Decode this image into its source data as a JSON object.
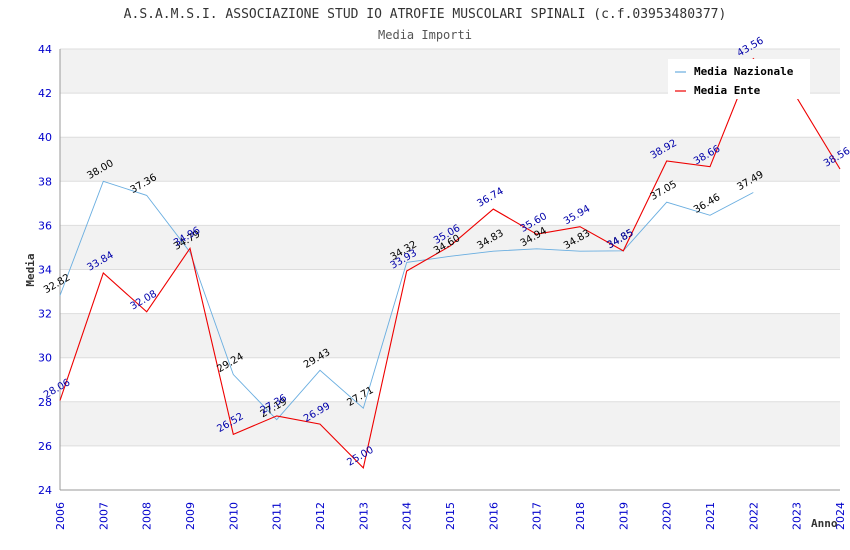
{
  "chart_data": {
    "type": "line",
    "title": "A.S.A.M.S.I. ASSOCIAZIONE STUD IO ATROFIE MUSCOLARI SPINALI (c.f.03953480377)",
    "subtitle": "Media Importi",
    "ylabel": "Media",
    "xlabel": "Anno",
    "ylim": [
      24,
      44
    ],
    "yticks": [
      "24",
      "26",
      "28",
      "30",
      "32",
      "34",
      "36",
      "38",
      "40",
      "42",
      "44"
    ],
    "categories": [
      "2006",
      "2007",
      "2008",
      "2009",
      "2010",
      "2011",
      "2012",
      "2013",
      "2014",
      "2015",
      "2016",
      "2017",
      "2018",
      "2019",
      "2020",
      "2021",
      "2022",
      "2023",
      "2024"
    ],
    "legend_position": "top-right",
    "series": [
      {
        "name": "Media Nazionale",
        "color": "#6aaee0",
        "label_color": "#000000",
        "values": [
          32.82,
          38.0,
          37.36,
          34.79,
          29.24,
          27.19,
          29.43,
          27.71,
          34.32,
          34.6,
          34.83,
          34.94,
          34.83,
          34.85,
          37.05,
          36.46,
          37.49,
          null,
          null
        ],
        "labels": [
          "32.82",
          "38.00",
          "37.36",
          "34.79",
          "29.24",
          "27.19",
          "29.43",
          "27.71",
          "34.32",
          "34.60",
          "34.83",
          "34.94",
          "34.83",
          "34.85",
          "37.05",
          "36.46",
          "37.49",
          null,
          null
        ]
      },
      {
        "name": "Media Ente",
        "color": "#ee0000",
        "label_color": "#0000aa",
        "values": [
          28.06,
          33.84,
          32.08,
          34.96,
          26.52,
          27.36,
          26.99,
          25.0,
          33.93,
          35.06,
          36.74,
          35.6,
          35.94,
          34.85,
          38.92,
          38.66,
          43.56,
          41.8,
          38.56
        ],
        "labels": [
          "28.06",
          "33.84",
          "32.08",
          "34.96",
          "26.52",
          "27.36",
          "26.99",
          "25.00",
          "33.93",
          "35.06",
          "36.74",
          "35.60",
          "35.94",
          "34.85",
          "38.92",
          "38.66",
          "43.56",
          null,
          "38.56"
        ]
      }
    ]
  }
}
